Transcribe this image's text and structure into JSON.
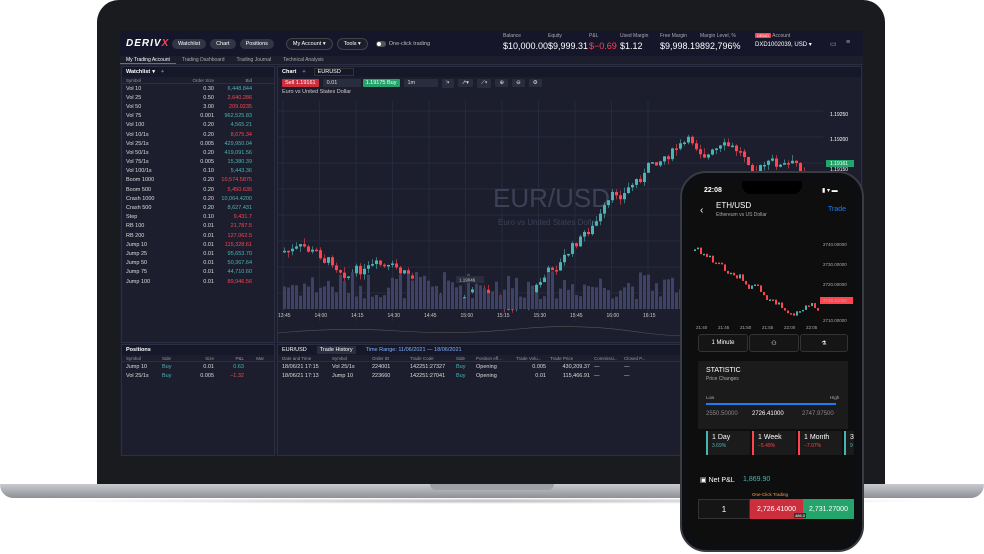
{
  "topbar": {
    "logo_a": "DERIV",
    "logo_b": "X",
    "watchlist": "Watchlist",
    "chart": "Chart",
    "positions": "Positions",
    "my_account": "My Account",
    "tools": "Tools",
    "one_click": "One-click trading",
    "stats": [
      {
        "label": "Balance",
        "value": "$10,000.00"
      },
      {
        "label": "Equity",
        "value": "$9,999.31"
      },
      {
        "label": "P&L",
        "value": "$−0.69"
      },
      {
        "label": "Used Margin",
        "value": "$1.12"
      },
      {
        "label": "Free Margin",
        "value": "$9,998.19"
      },
      {
        "label": "Margin Level, %",
        "value": "892,796%"
      }
    ],
    "account_label": "Account",
    "demo": "DEMO",
    "account_id": "DXD1002039, USD"
  },
  "tabs": [
    "My Trading Account",
    "Trading Dashboard",
    "Trading Journal",
    "Technical Analysis"
  ],
  "watchlist": {
    "title": "Watchlist",
    "cols": [
      "Symbol",
      "Order Size",
      "Bid"
    ],
    "rows": [
      [
        "Vol 10",
        "0.30",
        "6,448.844",
        "g"
      ],
      [
        "Vol 25",
        "0.50",
        "2,640.286",
        "r"
      ],
      [
        "Vol 50",
        "3.00",
        "209.0235",
        "r"
      ],
      [
        "Vol 75",
        "0.001",
        "962,525.83",
        "g"
      ],
      [
        "Vol 100",
        "0.20",
        "4,565.21",
        "g"
      ],
      [
        "Vol 10/1s",
        "0.20",
        "8,675.34",
        "r"
      ],
      [
        "Vol 25/1s",
        "0.005",
        "429,950.04",
        "g"
      ],
      [
        "Vol 50/1s",
        "0.20",
        "419,091.56",
        "g"
      ],
      [
        "Vol 75/1s",
        "0.005",
        "15,380.39",
        "g"
      ],
      [
        "Vol 100/1s",
        "0.10",
        "5,443.36",
        "g"
      ],
      [
        "Boom 1000",
        "0.20",
        "10,574.5875",
        "r"
      ],
      [
        "Boom 500",
        "0.20",
        "5,450.635",
        "r"
      ],
      [
        "Crash 1000",
        "0.20",
        "10,064.4200",
        "g"
      ],
      [
        "Crash 500",
        "0.20",
        "8,627.431",
        "g"
      ],
      [
        "Step",
        "0.10",
        "9,431.7",
        "r"
      ],
      [
        "RB 100",
        "0.01",
        "21,787.5",
        "r"
      ],
      [
        "RB 200",
        "0.01",
        "127,062.5",
        "r"
      ],
      [
        "Jump 10",
        "0.01",
        "115,328.61",
        "r"
      ],
      [
        "Jump 25",
        "0.01",
        "95,653.70",
        "g"
      ],
      [
        "Jump 50",
        "0.01",
        "50,367.64",
        "g"
      ],
      [
        "Jump 75",
        "0.01",
        "44,710.60",
        "g"
      ],
      [
        "Jump 100",
        "0.01",
        "89,946.56",
        "r"
      ]
    ]
  },
  "positions": {
    "title": "Positions",
    "cols": [
      "Symbol",
      "Side",
      "Size",
      "P&L",
      "Mar"
    ],
    "rows": [
      [
        "Jump 10",
        "Buy",
        "0.01",
        "0.63",
        "g"
      ],
      [
        "Vol 25/1s",
        "Buy",
        "0.005",
        "−1.32",
        "r"
      ]
    ]
  },
  "chart": {
    "title": "Chart",
    "symbol": "EURUSD",
    "sell_label": "Sell",
    "sell_price": "1.19161",
    "buy_price": "1.19175",
    "buy_label": "Buy",
    "size": "0.01",
    "tf": "1m",
    "subtitle": "Euro vs United States Dollar",
    "watermark": "EUR/USD",
    "watermark_sub": "Euro vs United States Dollar",
    "prices": [
      "1.19250",
      "1.19200",
      "1.19161",
      "1.19150"
    ],
    "times": [
      "13:45",
      "14:00",
      "14:15",
      "14:30",
      "14:45",
      "15:00",
      "15:15",
      "15:30",
      "15:45",
      "16:00",
      "16:15"
    ],
    "marker": "1.19046"
  },
  "history": {
    "tabs": [
      "EUR/USD",
      "Trade History",
      "Time Range: 11/06/2021 — 18/06/2021"
    ],
    "cols": [
      "Date and Time",
      "Symbol",
      "Order ID",
      "Trade Code",
      "Side",
      "Position eff...",
      "Trade Volu...",
      "Trade Price",
      "Commissi...",
      "Closed P..."
    ],
    "rows": [
      [
        "18/06/21 17:15",
        "Vol 25/1s",
        "224001",
        "142251:27327",
        "Buy",
        "Opening",
        "0.005",
        "430,209.37",
        "—",
        "—"
      ],
      [
        "18/06/21 17:13",
        "Jump 10",
        "223660",
        "142251:27041",
        "Buy",
        "Opening",
        "0.01",
        "115,466.91",
        "—",
        "—"
      ]
    ]
  },
  "phone": {
    "time": "22:08",
    "symbol": "ETH/USD",
    "sub": "Ethereum vs US Dollar",
    "trade": "Trade",
    "prices": [
      "2740.00000",
      "2730.00000",
      "2720.00000",
      "2726.41000",
      "2710.00000"
    ],
    "times": [
      "21:40",
      "21:45",
      "21:50",
      "21:55",
      "22:00",
      "22:05"
    ],
    "duration": "1 Minute",
    "statistic": "STATISTIC",
    "price_changes": "Price Changes",
    "low": "Low",
    "high": "High",
    "low_v": "2550.50000",
    "cur_v": "2726.41000",
    "high_v": "2747.97500",
    "cards": [
      {
        "t": "1 Day",
        "p": "3.69%",
        "c": "g"
      },
      {
        "t": "1 Week",
        "p": "−5.49%",
        "c": "r"
      },
      {
        "t": "1 Month",
        "p": "−7.07%",
        "c": "r"
      },
      {
        "t": "3",
        "p": "9",
        "c": "g"
      }
    ],
    "netpl_label": "Net P&L",
    "netpl": "1,869.90",
    "oneclick": "One-Click Trading",
    "qty": "1",
    "sell": "2,726.41000",
    "buy": "2,731.27000",
    "spread": "486.0"
  },
  "colors": {
    "accent": "#1c7cf4",
    "sell": "#cc2e3d",
    "buy": "#24a36a"
  }
}
